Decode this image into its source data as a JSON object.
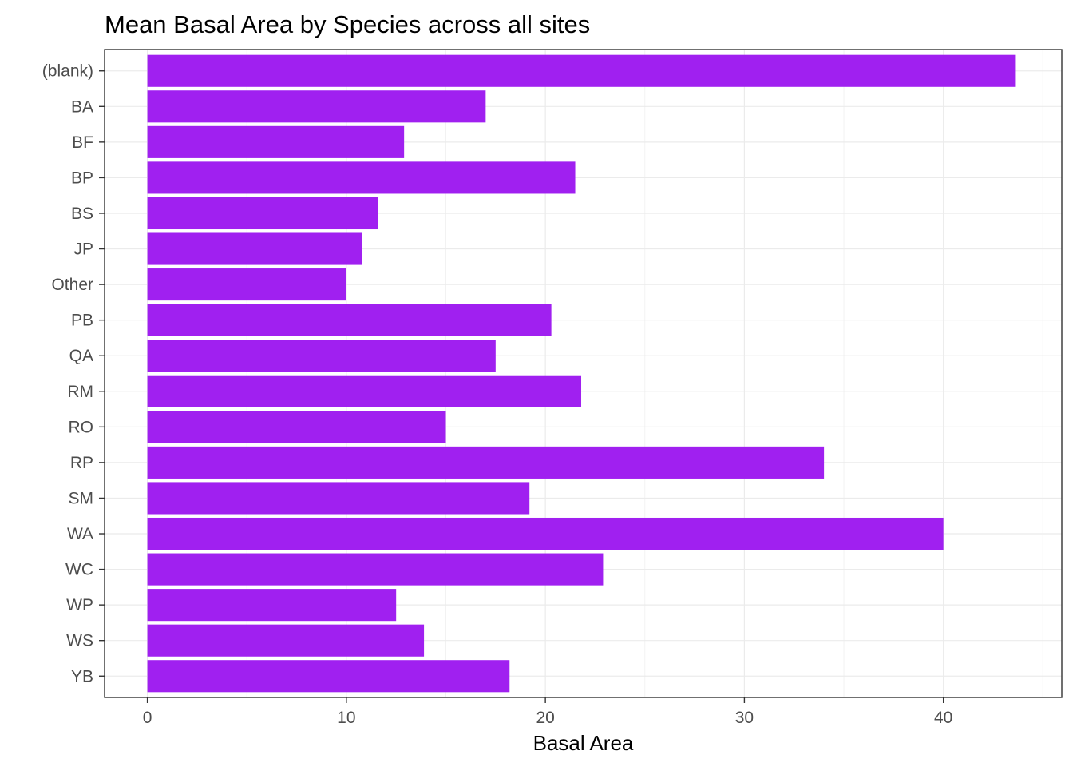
{
  "chart_data": {
    "type": "bar",
    "orientation": "horizontal",
    "title": "Mean Basal Area by Species across all sites",
    "xlabel": "Basal Area",
    "ylabel": "",
    "xlim": [
      -2.15,
      45.95
    ],
    "x_ticks": [
      0,
      10,
      20,
      30,
      40
    ],
    "x_tick_labels": [
      "0",
      "10",
      "20",
      "30",
      "40"
    ],
    "categories": [
      "(blank)",
      "BA",
      "BF",
      "BP",
      "BS",
      "JP",
      "Other",
      "PB",
      "QA",
      "RM",
      "RO",
      "RP",
      "SM",
      "WA",
      "WC",
      "WP",
      "WS",
      "YB"
    ],
    "values": [
      43.6,
      17.0,
      12.9,
      21.5,
      11.6,
      10.8,
      10.0,
      20.3,
      17.5,
      21.8,
      15.0,
      34.0,
      19.2,
      40.0,
      22.9,
      12.5,
      13.9,
      18.2
    ],
    "bar_color": "#A020F0",
    "grid": true,
    "legend": "none"
  }
}
